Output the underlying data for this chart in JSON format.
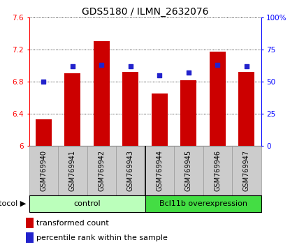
{
  "title": "GDS5180 / ILMN_2632076",
  "samples": [
    "GSM769940",
    "GSM769941",
    "GSM769942",
    "GSM769943",
    "GSM769944",
    "GSM769945",
    "GSM769946",
    "GSM769947"
  ],
  "transformed_count": [
    6.33,
    6.9,
    7.3,
    6.92,
    6.65,
    6.82,
    7.17,
    6.92
  ],
  "percentile_rank": [
    50,
    62,
    63,
    62,
    55,
    57,
    63,
    62
  ],
  "ylim_left": [
    6.0,
    7.6
  ],
  "ylim_right": [
    0,
    100
  ],
  "yticks_left": [
    6.0,
    6.4,
    6.8,
    7.2,
    7.6
  ],
  "yticks_right": [
    0,
    25,
    50,
    75,
    100
  ],
  "ytick_labels_left": [
    "6",
    "6.4",
    "6.8",
    "7.2",
    "7.6"
  ],
  "ytick_labels_right": [
    "0",
    "25",
    "50",
    "75",
    "100%"
  ],
  "bar_color": "#cc0000",
  "dot_color": "#2222cc",
  "bar_width": 0.55,
  "control_color": "#bbffbb",
  "bcl_color": "#44dd44",
  "protocol_label": "protocol",
  "legend_bar_label": "transformed count",
  "legend_dot_label": "percentile rank within the sample",
  "title_fontsize": 10,
  "tick_fontsize": 7.5,
  "sample_fontsize": 7,
  "legend_fontsize": 8
}
